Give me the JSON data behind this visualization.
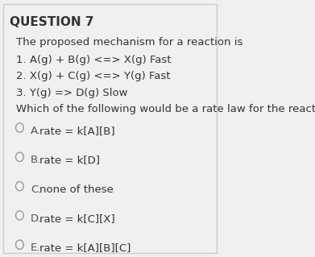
{
  "title": "QUESTION 7",
  "background_color": "#f0f0f0",
  "border_color": "#cccccc",
  "title_fontsize": 11,
  "body_fontsize": 9.5,
  "intro_text": "The proposed mechanism for a reaction is",
  "steps": [
    "1. A(g) + B(g) <=> X(g) Fast",
    "2. X(g) + C(g) <=> Y(g) Fast",
    "3. Y(g) => D(g) Slow"
  ],
  "question": "Which of the following would be a rate law for the reaction?",
  "options": [
    {
      "label": "A.",
      "text": "rate = k[A][B]"
    },
    {
      "label": "B.",
      "text": "rate = k[D]"
    },
    {
      "label": "C.",
      "text": "none of these"
    },
    {
      "label": "D.",
      "text": "rate = k[C][X]"
    },
    {
      "label": "E.",
      "text": "rate = k[A][B][C]"
    }
  ],
  "circle_color": "#999999",
  "text_color": "#333333",
  "label_color": "#555555"
}
